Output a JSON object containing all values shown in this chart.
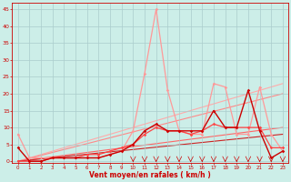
{
  "xlabel": "Vent moyen/en rafales ( km/h )",
  "background_color": "#cceee8",
  "grid_color": "#aacccc",
  "x_ticks": [
    0,
    1,
    2,
    3,
    4,
    5,
    6,
    7,
    8,
    9,
    10,
    11,
    12,
    13,
    14,
    15,
    16,
    17,
    18,
    19,
    20,
    21,
    22,
    23
  ],
  "y_ticks": [
    0,
    5,
    10,
    15,
    20,
    25,
    30,
    35,
    40,
    45
  ],
  "ylim": [
    -0.5,
    47
  ],
  "xlim": [
    -0.5,
    23.5
  ],
  "series": [
    {
      "x": [
        0,
        1,
        2,
        3,
        4,
        5,
        6,
        7,
        8,
        9,
        10,
        11,
        12,
        13,
        14,
        15,
        16,
        17,
        18,
        19,
        20,
        21,
        22,
        23
      ],
      "y": [
        8,
        1,
        1,
        1,
        1,
        1,
        1,
        1,
        2,
        3,
        9,
        26,
        45,
        21,
        9,
        8,
        8,
        23,
        22,
        8,
        8,
        22,
        8,
        3
      ],
      "color": "#ff9999",
      "lw": 0.9,
      "marker": "D",
      "ms": 1.8,
      "zorder": 3
    },
    {
      "x": [
        0,
        1,
        2,
        3,
        4,
        5,
        6,
        7,
        8,
        9,
        10,
        11,
        12,
        13,
        14,
        15,
        16,
        17,
        18,
        19,
        20,
        21,
        22,
        23
      ],
      "y": [
        4,
        0,
        0,
        1,
        1,
        1,
        1,
        1,
        2,
        3,
        5,
        9,
        11,
        9,
        9,
        9,
        9,
        15,
        10,
        10,
        21,
        9,
        1,
        3
      ],
      "color": "#cc0000",
      "lw": 1.0,
      "marker": "D",
      "ms": 1.8,
      "zorder": 4
    },
    {
      "x": [
        0,
        23
      ],
      "y": [
        0,
        23
      ],
      "color": "#ffaaaa",
      "lw": 0.8,
      "marker": null,
      "zorder": 1,
      "linestyle": "-"
    },
    {
      "x": [
        0,
        23
      ],
      "y": [
        0,
        20
      ],
      "color": "#ff8888",
      "lw": 0.8,
      "marker": null,
      "zorder": 1,
      "linestyle": "-"
    },
    {
      "x": [
        0,
        23
      ],
      "y": [
        0,
        10
      ],
      "color": "#ff6666",
      "lw": 0.8,
      "marker": null,
      "zorder": 1,
      "linestyle": "-"
    },
    {
      "x": [
        0,
        23
      ],
      "y": [
        0,
        8
      ],
      "color": "#cc2222",
      "lw": 0.8,
      "marker": null,
      "zorder": 1,
      "linestyle": "-"
    },
    {
      "x": [
        0,
        1,
        2,
        3,
        4,
        5,
        6,
        7,
        8,
        9,
        10,
        11,
        12,
        13,
        14,
        15,
        16,
        17,
        18,
        19,
        20,
        21,
        22,
        23
      ],
      "y": [
        0,
        0,
        0,
        1,
        1,
        1,
        2,
        2,
        3,
        4,
        5,
        8,
        10,
        9,
        9,
        8,
        9,
        11,
        10,
        10,
        10,
        10,
        4,
        4
      ],
      "color": "#ff4444",
      "lw": 0.9,
      "marker": "D",
      "ms": 1.8,
      "zorder": 3
    }
  ]
}
